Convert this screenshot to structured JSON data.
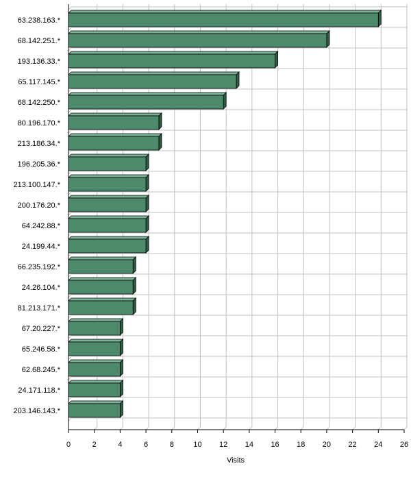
{
  "chart_data": {
    "type": "bar",
    "orientation": "horizontal",
    "style": "3d",
    "categories": [
      "63.238.163.*",
      "68.142.251.*",
      "193.136.33.*",
      "65.117.145.*",
      "68.142.250.*",
      "80.196.170.*",
      "213.186.34.*",
      "196.205.36.*",
      "213.100.147.*",
      "200.176.20.*",
      "64.242.88.*",
      "24.199.44.*",
      "66.235.192.*",
      "24.26.104.*",
      "81.213.171.*",
      "67.20.227.*",
      "65.246.58.*",
      "62.68.245.*",
      "24.171.118.*",
      "203.146.143.*"
    ],
    "values": [
      24,
      20,
      16,
      13,
      12,
      7,
      7,
      6,
      6,
      6,
      6,
      6,
      5,
      5,
      5,
      4,
      4,
      4,
      4,
      4
    ],
    "xlabel": "Visits",
    "ylabel": "",
    "xlim": [
      0,
      26
    ],
    "xticks": [
      0,
      2,
      4,
      6,
      8,
      10,
      12,
      14,
      16,
      18,
      20,
      22,
      24,
      26
    ],
    "grid": true,
    "colors": {
      "bar_front": "#4d8a6c",
      "bar_top": "#7fb399",
      "bar_side": "#2f5e47",
      "grid": "#c0c0c0",
      "axis": "#000000"
    }
  }
}
